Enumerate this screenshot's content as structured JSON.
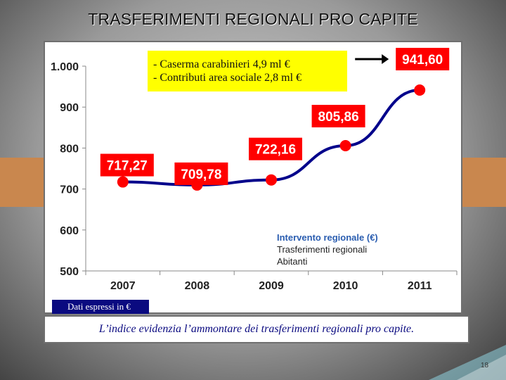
{
  "slide": {
    "title": "TRASFERIMENTI REGIONALI PRO CAPITE",
    "page_number": "18",
    "annotation_lines": [
      "- Caserma carabinieri 4,9 ml €",
      "- Contributi area sociale  2,8 ml €"
    ],
    "note": "Dati espressi in €",
    "caption": "L’indice evidenzia l’ammontare dei trasferimenti regionali pro capite.",
    "colors": {
      "label_box": "#ff0000",
      "line": "#00008b",
      "marker": "#ff0000",
      "annotation_bg": "#ffff00",
      "note_bg": "#0a0a80",
      "accent": "#c9874e"
    }
  },
  "chart_data": {
    "type": "line",
    "title": "",
    "categories": [
      "2007",
      "2008",
      "2009",
      "2010",
      "2011"
    ],
    "series": [
      {
        "name": "Intervento regionale  (€)",
        "values": [
          717.27,
          709.78,
          722.16,
          805.86,
          941.6
        ],
        "labels": [
          "717,27",
          "709,78",
          "722,16",
          "805,86",
          "941,60"
        ]
      }
    ],
    "yticks": [
      500,
      600,
      700,
      800,
      900,
      1000
    ],
    "ytick_labels": [
      "500",
      "600",
      "700",
      "800",
      "900",
      "1.000"
    ],
    "ylim": [
      500,
      1000
    ],
    "grid": false,
    "legend_lines": [
      "Intervento regionale  (€)",
      "Trasferimenti regionali",
      "Abitanti"
    ],
    "legend_position": "bottom-right",
    "xlabel": "",
    "ylabel": ""
  }
}
